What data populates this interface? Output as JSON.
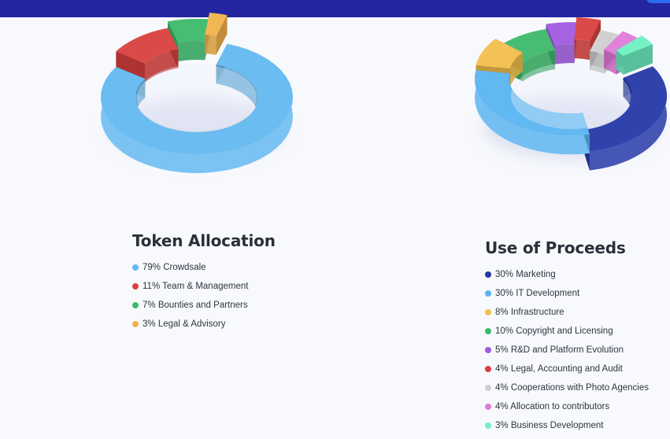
{
  "header": {
    "bar_color": "#2326a0",
    "corner_button_color": "#2a6cf0"
  },
  "chart_data": [
    {
      "type": "pie",
      "style": "3d-donut",
      "title": "Token Allocation",
      "legend": [
        {
          "label": "79% Crowdsale",
          "value": 79,
          "color": "#62b8f0"
        },
        {
          "label": "11% Team & Management",
          "value": 11,
          "color": "#d8403f"
        },
        {
          "label": "7% Bounties and Partners",
          "value": 7,
          "color": "#3cba6c"
        },
        {
          "label": "3% Legal & Advisory",
          "value": 3,
          "color": "#f2b24c"
        }
      ]
    },
    {
      "type": "pie",
      "style": "3d-donut",
      "title": "Use of Proceeds",
      "legend": [
        {
          "label": "30% Marketing",
          "value": 30,
          "color": "#2538a8"
        },
        {
          "label": "30% IT Development",
          "value": 30,
          "color": "#5ab4f0"
        },
        {
          "label": "8% Infrastructure",
          "value": 8,
          "color": "#f2be4c"
        },
        {
          "label": "10% Copyright and Licensing",
          "value": 10,
          "color": "#3cba6c"
        },
        {
          "label": "5% R&D and Platform Evolution",
          "value": 5,
          "color": "#a05ae0"
        },
        {
          "label": "4% Legal, Accounting and Audit",
          "value": 4,
          "color": "#d8403f"
        },
        {
          "label": "4% Cooperations with Photo Agencies",
          "value": 4,
          "color": "#cfcfcf"
        },
        {
          "label": "4% Allocation to contributors",
          "value": 4,
          "color": "#e07ad8"
        },
        {
          "label": "3% Business Development",
          "value": 3,
          "color": "#6ef0c0"
        }
      ]
    }
  ]
}
